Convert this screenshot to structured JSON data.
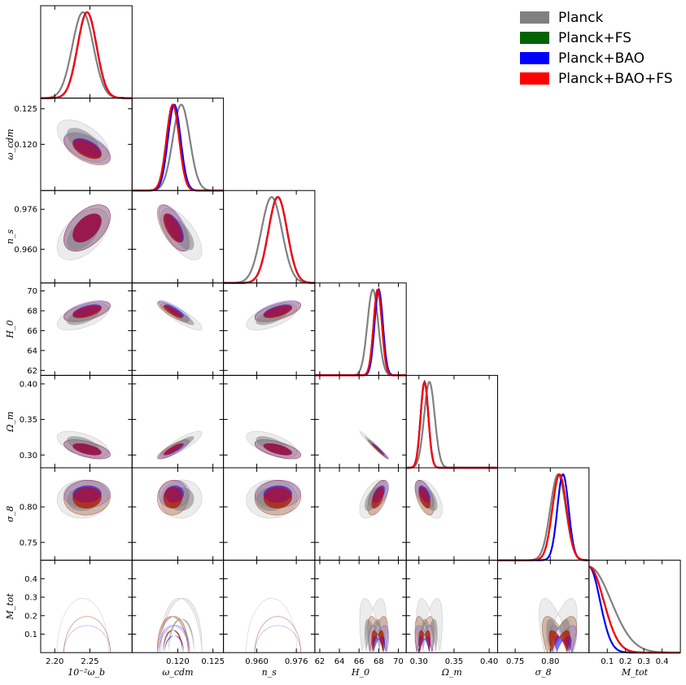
{
  "chart_data": {
    "type": "corner",
    "title": "",
    "datasets": [
      {
        "name": "Planck",
        "color": "#808080"
      },
      {
        "name": "Planck+FS",
        "color": "#006400"
      },
      {
        "name": "Planck+BAO",
        "color": "#0000ff"
      },
      {
        "name": "Planck+BAO+FS",
        "color": "#ff0000"
      }
    ],
    "parameters": [
      {
        "key": "omega_b",
        "label": "10⁻²ω_b",
        "range": [
          2.18,
          2.31
        ],
        "ticks": [
          2.2,
          2.25
        ],
        "tick_labels": [
          "2.20",
          "2.25"
        ]
      },
      {
        "key": "omega_cdm",
        "label": "ω_cdm",
        "range": [
          0.1135,
          0.1265
        ],
        "ticks": [
          0.12,
          0.125
        ],
        "tick_labels": [
          "0.120",
          "0.125"
        ]
      },
      {
        "key": "n_s",
        "label": "n_s",
        "range": [
          0.9465,
          0.9835
        ],
        "ticks": [
          0.96,
          0.976
        ],
        "tick_labels": [
          "0.960",
          "0.976"
        ]
      },
      {
        "key": "H0",
        "label": "H_0",
        "range": [
          61.5,
          70.8
        ],
        "ticks": [
          62,
          64,
          66,
          68,
          70
        ],
        "tick_labels": [
          "62",
          "64",
          "66",
          "68",
          "70"
        ]
      },
      {
        "key": "Omega_m",
        "label": "Ω_m",
        "range": [
          0.282,
          0.412
        ],
        "ticks": [
          0.3,
          0.35,
          0.4
        ],
        "tick_labels": [
          "0.30",
          "0.35",
          "0.40"
        ]
      },
      {
        "key": "sigma8",
        "label": "σ_8",
        "range": [
          0.725,
          0.855
        ],
        "ticks": [
          0.75,
          0.8
        ],
        "tick_labels": [
          "0.75",
          "0.80"
        ]
      },
      {
        "key": "Mtot",
        "label": "M_tot",
        "range": [
          0.0,
          0.5
        ],
        "ticks": [
          0.1,
          0.2,
          0.3,
          0.4
        ],
        "tick_labels": [
          "0.1",
          "0.2",
          "0.3",
          "0.4"
        ]
      }
    ],
    "marginal_peaks": {
      "Planck": {
        "omega_b": 2.24,
        "omega_cdm": 0.1205,
        "n_s": 0.966,
        "H0": 67.4,
        "Omega_m": 0.315,
        "sigma8": 0.811,
        "Mtot": 0.0
      },
      "Planck+FS": {
        "omega_b": 2.246,
        "omega_cdm": 0.1193,
        "n_s": 0.9685,
        "H0": 67.9,
        "Omega_m": 0.308,
        "sigma8": 0.813,
        "Mtot": 0.0
      },
      "Planck+BAO": {
        "omega_b": 2.246,
        "omega_cdm": 0.1195,
        "n_s": 0.9685,
        "H0": 68.0,
        "Omega_m": 0.308,
        "sigma8": 0.818,
        "Mtot": 0.0
      },
      "Planck+BAO+FS": {
        "omega_b": 2.246,
        "omega_cdm": 0.1193,
        "n_s": 0.9685,
        "H0": 67.9,
        "Omega_m": 0.308,
        "sigma8": 0.813,
        "Mtot": 0.0
      }
    },
    "legend_position": "top-right"
  }
}
